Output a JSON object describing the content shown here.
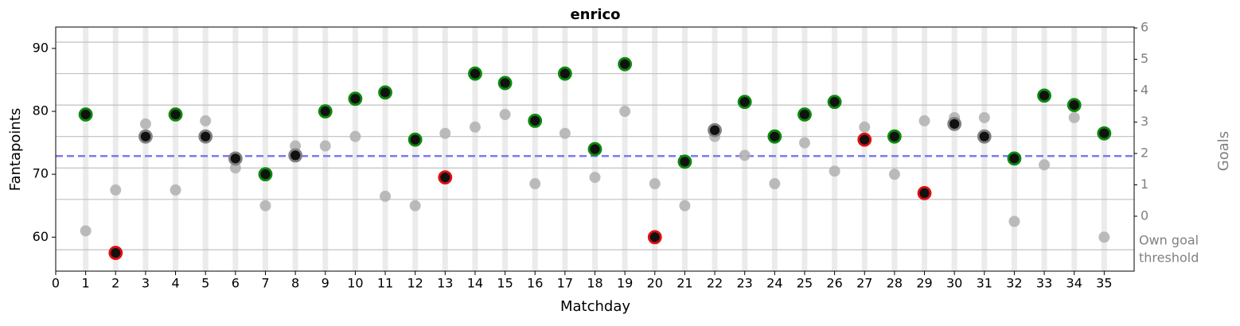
{
  "chart_data": {
    "type": "scatter",
    "title": "enrico",
    "xlabel": "Matchday",
    "ylabel": "Fantapoints",
    "y2label": "Goals",
    "x": [
      1,
      2,
      3,
      4,
      5,
      6,
      7,
      8,
      9,
      10,
      11,
      12,
      13,
      14,
      15,
      16,
      17,
      18,
      19,
      20,
      21,
      22,
      23,
      24,
      25,
      26,
      27,
      28,
      29,
      30,
      31,
      32,
      33,
      34,
      35
    ],
    "series": [
      {
        "color": "#b0b0b0",
        "values": [
          61,
          67.5,
          78,
          67.5,
          78.5,
          71,
          65,
          74.5,
          74.5,
          76,
          66.5,
          65,
          76.5,
          77.5,
          79.5,
          68.5,
          76.5,
          69.5,
          80,
          68.5,
          65,
          76,
          73,
          68.5,
          75,
          70.5,
          77.5,
          70,
          78.5,
          79,
          79,
          62.5,
          71.5,
          79,
          60
        ]
      },
      {
        "color": "#111111",
        "values": [
          79.5,
          57.5,
          76,
          79.5,
          76,
          72.5,
          70,
          73,
          80,
          82,
          83,
          75.5,
          69.5,
          86,
          84.5,
          78.5,
          86,
          74,
          87.5,
          60,
          72,
          77,
          81.5,
          76,
          79.5,
          81.5,
          75.5,
          76,
          67,
          78,
          76,
          72.5,
          82.5,
          81,
          76.5
        ],
        "edge_colors": [
          "#0a8a0a",
          "#e01010",
          "#808080",
          "#0a8a0a",
          "#808080",
          "#808080",
          "#0a8a0a",
          "#808080",
          "#0a8a0a",
          "#0a8a0a",
          "#0a8a0a",
          "#0a8a0a",
          "#e01010",
          "#0a8a0a",
          "#0a8a0a",
          "#0a8a0a",
          "#0a8a0a",
          "#0a8a0a",
          "#0a8a0a",
          "#e01010",
          "#0a8a0a",
          "#808080",
          "#0a8a0a",
          "#0a8a0a",
          "#0a8a0a",
          "#0a8a0a",
          "#e01010",
          "#0a8a0a",
          "#e01010",
          "#808080",
          "#808080",
          "#0a8a0a",
          "#0a8a0a",
          "#0a8a0a",
          "#0a8a0a"
        ]
      }
    ],
    "mean_line": 72.9,
    "mean_color": "#7b7bf0",
    "goal_thresholds": [
      58,
      66,
      71,
      76,
      81,
      86,
      91
    ],
    "threshold_label": [
      "Own goal",
      "threshold"
    ],
    "xlim": [
      0,
      36
    ],
    "xticks": [
      0,
      1,
      2,
      3,
      4,
      5,
      6,
      7,
      8,
      9,
      10,
      11,
      12,
      13,
      14,
      15,
      16,
      17,
      18,
      19,
      20,
      21,
      22,
      23,
      24,
      25,
      26,
      27,
      28,
      29,
      30,
      31,
      32,
      33,
      34,
      35
    ],
    "ylim": [
      54.6,
      93.4
    ],
    "yticks": [
      60,
      70,
      80,
      90
    ],
    "y2lim": [
      -1.75,
      6.03
    ],
    "y2ticks": [
      0,
      1,
      2,
      3,
      4,
      5,
      6
    ]
  }
}
